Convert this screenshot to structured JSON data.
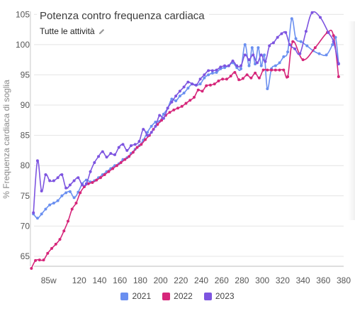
{
  "header": {
    "title": "Potenza contro frequenza cardiaca",
    "filter_label": "Tutte le attività",
    "filter_icon": "pencil-icon"
  },
  "chart_data": {
    "type": "line",
    "title": "Potenza contro frequenza cardiaca",
    "xlabel": "",
    "ylabel": "% Frequenza cardiaca di soglia",
    "xlim": [
      70,
      380
    ],
    "ylim": [
      63,
      105.5
    ],
    "x_ticks": [
      "85w",
      "120",
      "140",
      "160",
      "180",
      "200",
      "220",
      "240",
      "260",
      "280",
      "300",
      "320",
      "340",
      "360",
      "380"
    ],
    "x_tick_values": [
      90,
      120,
      140,
      160,
      180,
      200,
      220,
      240,
      260,
      280,
      300,
      320,
      340,
      360,
      380
    ],
    "y_ticks": [
      65,
      70,
      75,
      80,
      85,
      90,
      95,
      100,
      105
    ],
    "grid": true,
    "legend_position": "bottom",
    "series": [
      {
        "name": "2021",
        "color": "#6a8ff0",
        "points": [
          [
            75,
            72.0
          ],
          [
            79,
            71.3
          ],
          [
            83,
            72.0
          ],
          [
            87,
            72.8
          ],
          [
            91,
            73.5
          ],
          [
            95,
            73.8
          ],
          [
            99,
            74.2
          ],
          [
            103,
            75.0
          ],
          [
            107,
            75.5
          ],
          [
            111,
            75.7
          ],
          [
            115,
            74.7
          ],
          [
            119,
            75.6
          ],
          [
            123,
            77.0
          ],
          [
            127,
            77.6
          ],
          [
            131,
            77.3
          ],
          [
            135,
            77.5
          ],
          [
            139,
            78.0
          ],
          [
            143,
            78.5
          ],
          [
            147,
            79.0
          ],
          [
            151,
            79.5
          ],
          [
            155,
            80.0
          ],
          [
            159,
            80.3
          ],
          [
            163,
            81.0
          ],
          [
            167,
            81.3
          ],
          [
            171,
            82.0
          ],
          [
            175,
            82.7
          ],
          [
            179,
            83.3
          ],
          [
            183,
            84.2
          ],
          [
            187,
            85.5
          ],
          [
            191,
            86.5
          ],
          [
            195,
            87.2
          ],
          [
            199,
            87.3
          ],
          [
            203,
            88.5
          ],
          [
            207,
            89.5
          ],
          [
            211,
            91.0
          ],
          [
            215,
            90.7
          ],
          [
            219,
            91.5
          ],
          [
            223,
            92.0
          ],
          [
            227,
            92.8
          ],
          [
            231,
            93.5
          ],
          [
            235,
            93.3
          ],
          [
            239,
            93.5
          ],
          [
            243,
            94.5
          ],
          [
            247,
            95.0
          ],
          [
            251,
            95.3
          ],
          [
            255,
            95.4
          ],
          [
            259,
            96.0
          ],
          [
            263,
            96.2
          ],
          [
            267,
            96.5
          ],
          [
            271,
            97.0
          ],
          [
            275,
            96.2
          ],
          [
            279,
            96.0
          ],
          [
            283,
            100.0
          ],
          [
            287,
            96.5
          ],
          [
            290,
            99.5
          ],
          [
            293,
            96.8
          ],
          [
            296,
            99.5
          ],
          [
            299,
            96.5
          ],
          [
            302,
            98.3
          ],
          [
            305,
            92.7
          ],
          [
            309,
            96.0
          ],
          [
            313,
            96.5
          ],
          [
            317,
            97.0
          ],
          [
            321,
            98.0
          ],
          [
            325,
            98.8
          ],
          [
            329,
            104.3
          ],
          [
            333,
            101.0
          ],
          [
            338,
            100.5
          ],
          [
            344,
            99.8
          ],
          [
            350,
            99.0
          ],
          [
            356,
            98.5
          ],
          [
            363,
            98.3
          ],
          [
            369,
            100.0
          ],
          [
            372,
            101.2
          ],
          [
            375,
            96.9
          ]
        ]
      },
      {
        "name": "2022",
        "color": "#d6267a",
        "points": [
          [
            73,
            63.0
          ],
          [
            77,
            64.3
          ],
          [
            81,
            64.4
          ],
          [
            85,
            64.4
          ],
          [
            89,
            65.5
          ],
          [
            93,
            66.3
          ],
          [
            97,
            67.0
          ],
          [
            101,
            67.8
          ],
          [
            105,
            69.2
          ],
          [
            109,
            70.8
          ],
          [
            113,
            72.8
          ],
          [
            117,
            73.8
          ],
          [
            121,
            75.5
          ],
          [
            125,
            76.5
          ],
          [
            129,
            77.0
          ],
          [
            133,
            77.2
          ],
          [
            137,
            77.6
          ],
          [
            141,
            78.0
          ],
          [
            145,
            78.5
          ],
          [
            149,
            79.0
          ],
          [
            153,
            79.5
          ],
          [
            157,
            80.0
          ],
          [
            161,
            80.5
          ],
          [
            165,
            81.0
          ],
          [
            169,
            81.5
          ],
          [
            173,
            82.2
          ],
          [
            177,
            83.0
          ],
          [
            181,
            83.5
          ],
          [
            185,
            84.3
          ],
          [
            189,
            85.0
          ],
          [
            193,
            86.0
          ],
          [
            197,
            86.8
          ],
          [
            201,
            87.5
          ],
          [
            205,
            88.3
          ],
          [
            209,
            88.8
          ],
          [
            213,
            89.2
          ],
          [
            217,
            89.5
          ],
          [
            221,
            89.8
          ],
          [
            225,
            90.3
          ],
          [
            229,
            90.8
          ],
          [
            233,
            91.3
          ],
          [
            237,
            92.5
          ],
          [
            241,
            92.3
          ],
          [
            245,
            93.2
          ],
          [
            249,
            93.3
          ],
          [
            253,
            93.5
          ],
          [
            257,
            94.0
          ],
          [
            261,
            94.3
          ],
          [
            265,
            94.3
          ],
          [
            269,
            94.8
          ],
          [
            273,
            95.4
          ],
          [
            277,
            94.2
          ],
          [
            281,
            94.4
          ],
          [
            285,
            95.0
          ],
          [
            289,
            94.5
          ],
          [
            293,
            95.3
          ],
          [
            297,
            94.5
          ],
          [
            301,
            95.8
          ],
          [
            305,
            95.8
          ],
          [
            309,
            95.8
          ],
          [
            313,
            95.8
          ],
          [
            317,
            95.8
          ],
          [
            321,
            95.8
          ],
          [
            325,
            94.7
          ],
          [
            330,
            100.5
          ],
          [
            340,
            97.5
          ],
          [
            352,
            99.5
          ],
          [
            364,
            102.0
          ],
          [
            370,
            101.5
          ],
          [
            375,
            94.7
          ]
        ]
      },
      {
        "name": "2023",
        "color": "#7d54e0",
        "points": [
          [
            75,
            72.2
          ],
          [
            79,
            80.8
          ],
          [
            83,
            75.8
          ],
          [
            87,
            78.5
          ],
          [
            91,
            77.5
          ],
          [
            95,
            77.5
          ],
          [
            99,
            78.0
          ],
          [
            103,
            78.5
          ],
          [
            107,
            76.3
          ],
          [
            111,
            76.8
          ],
          [
            115,
            77.5
          ],
          [
            119,
            78.0
          ],
          [
            123,
            76.8
          ],
          [
            127,
            77.0
          ],
          [
            131,
            79.0
          ],
          [
            135,
            80.5
          ],
          [
            139,
            81.5
          ],
          [
            143,
            82.3
          ],
          [
            147,
            81.4
          ],
          [
            151,
            82.0
          ],
          [
            155,
            81.8
          ],
          [
            159,
            83.0
          ],
          [
            163,
            83.5
          ],
          [
            167,
            82.5
          ],
          [
            171,
            83.3
          ],
          [
            175,
            83.5
          ],
          [
            179,
            84.0
          ],
          [
            183,
            86.0
          ],
          [
            187,
            85.0
          ],
          [
            191,
            85.5
          ],
          [
            195,
            86.5
          ],
          [
            199,
            88.3
          ],
          [
            203,
            87.8
          ],
          [
            207,
            89.5
          ],
          [
            211,
            90.5
          ],
          [
            215,
            91.5
          ],
          [
            219,
            92.3
          ],
          [
            223,
            93.0
          ],
          [
            227,
            93.8
          ],
          [
            231,
            93.5
          ],
          [
            235,
            93.3
          ],
          [
            239,
            94.3
          ],
          [
            243,
            95.0
          ],
          [
            247,
            95.7
          ],
          [
            251,
            95.7
          ],
          [
            255,
            95.8
          ],
          [
            259,
            96.3
          ],
          [
            263,
            96.5
          ],
          [
            267,
            96.5
          ],
          [
            271,
            97.3
          ],
          [
            275,
            96.5
          ],
          [
            279,
            96.5
          ],
          [
            283,
            98.3
          ],
          [
            287,
            97.5
          ],
          [
            291,
            98.3
          ],
          [
            295,
            97.0
          ],
          [
            299,
            98.3
          ],
          [
            303,
            97.2
          ],
          [
            307,
            99.8
          ],
          [
            311,
            100.3
          ],
          [
            315,
            101.2
          ],
          [
            319,
            101.8
          ],
          [
            323,
            102.0
          ],
          [
            327,
            100.0
          ],
          [
            332,
            99.3
          ],
          [
            337,
            98.5
          ],
          [
            343,
            102.2
          ],
          [
            349,
            105.3
          ],
          [
            357,
            104.5
          ],
          [
            365,
            102.0
          ],
          [
            370,
            100.5
          ],
          [
            375,
            96.8
          ]
        ]
      }
    ]
  },
  "legend": {
    "items": [
      {
        "label": "2021",
        "color": "#6a8ff0"
      },
      {
        "label": "2022",
        "color": "#d6267a"
      },
      {
        "label": "2023",
        "color": "#7d54e0"
      }
    ]
  }
}
